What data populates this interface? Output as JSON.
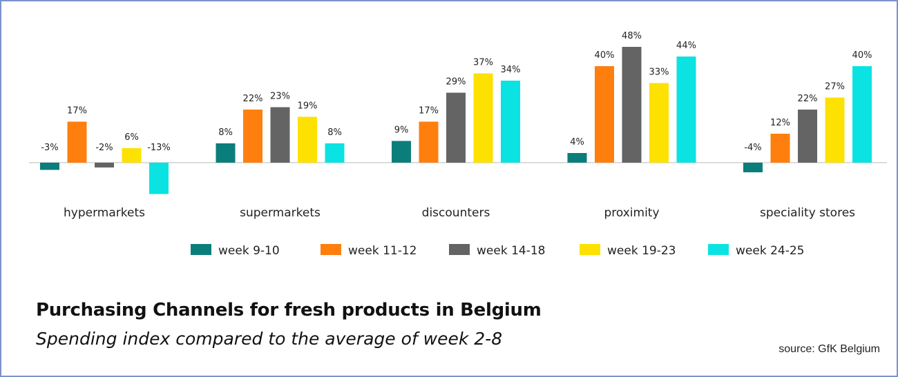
{
  "title": "Purchasing Channels for fresh products in Belgium",
  "subtitle": "Spending index compared to the average of week 2-8",
  "source": "source: GfK Belgium",
  "chart_data": {
    "type": "bar",
    "categories": [
      "hypermarkets",
      "supermarkets",
      "discounters",
      "proximity",
      "speciality stores"
    ],
    "series": [
      {
        "name": "week 9-10",
        "color": "#0b7e7c",
        "values": [
          -3,
          8,
          9,
          4,
          -4
        ],
        "labels": [
          "-3%",
          "8%",
          "9%",
          "4%",
          "-4%"
        ]
      },
      {
        "name": "week 11-12",
        "color": "#fe7f0e",
        "values": [
          17,
          22,
          17,
          40,
          12
        ],
        "labels": [
          "17%",
          "22%",
          "17%",
          "40%",
          "12%"
        ]
      },
      {
        "name": "week 14-18",
        "color": "#646464",
        "values": [
          -2,
          23,
          29,
          48,
          22
        ],
        "labels": [
          "-2%",
          "23%",
          "29%",
          "48%",
          "22%"
        ]
      },
      {
        "name": "week 19-23",
        "color": "#fde100",
        "values": [
          6,
          19,
          37,
          33,
          27
        ],
        "labels": [
          "6%",
          "19%",
          "37%",
          "33%",
          "27%"
        ]
      },
      {
        "name": "week 24-25",
        "color": "#0be3e3",
        "values": [
          -13,
          8,
          34,
          44,
          40
        ],
        "labels": [
          "-13%",
          "8%",
          "34%",
          "44%",
          "40%"
        ]
      }
    ],
    "legend_position": "bottom",
    "grid": false,
    "ylim": [
      -14,
      50
    ]
  }
}
